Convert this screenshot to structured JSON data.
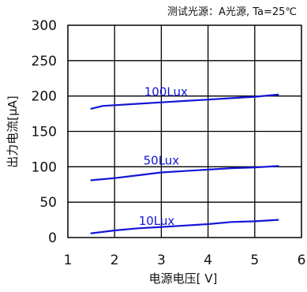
{
  "chart_data": {
    "type": "line",
    "note": "测试光源：A光源, Ta=25℃",
    "xlabel": "电源电压[ V]",
    "ylabel": "出力电流[μA]",
    "xlim": [
      1,
      6
    ],
    "ylim": [
      0,
      300
    ],
    "x_ticks": [
      "1",
      "2",
      "3",
      "4",
      "5",
      "6"
    ],
    "y_ticks": [
      "0",
      "50",
      "100",
      "150",
      "200",
      "250",
      "300"
    ],
    "grid": true,
    "series_color": "#1414d8",
    "series": [
      {
        "name": "100Lux",
        "x": [
          1.5,
          1.75,
          2.0,
          2.5,
          3.0,
          3.5,
          4.0,
          4.5,
          5.0,
          5.5
        ],
        "values": [
          182,
          186,
          187,
          189,
          191,
          193,
          195,
          197,
          199,
          202
        ]
      },
      {
        "name": "50Lux",
        "x": [
          1.5,
          2.0,
          2.5,
          3.0,
          3.5,
          4.0,
          4.5,
          5.0,
          5.5
        ],
        "values": [
          81,
          84,
          88,
          92,
          94,
          96,
          98,
          99,
          101
        ]
      },
      {
        "name": "10Lux",
        "x": [
          1.5,
          2.0,
          2.5,
          3.0,
          3.5,
          4.0,
          4.5,
          5.0,
          5.5
        ],
        "values": [
          6,
          10,
          13,
          15,
          17,
          19,
          22,
          23,
          25
        ]
      }
    ]
  }
}
